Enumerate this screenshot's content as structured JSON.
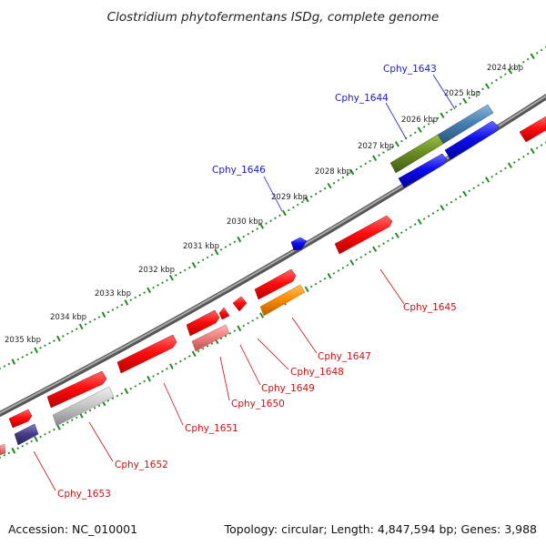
{
  "title": "Clostridium phytofermentans ISDg, complete genome",
  "scale_labels": [
    "2024 kbp",
    "2025 kbp",
    "2026 kbp",
    "2027 kbp",
    "2028 kbp",
    "2029 kbp",
    "2030 kbp",
    "2031 kbp",
    "2032 kbp",
    "2033 kbp",
    "2034 kbp",
    "2035 kbp"
  ],
  "top_genes": [
    "Cphy_1643",
    "Cphy_1644",
    "Cphy_1646"
  ],
  "bottom_genes": [
    "Cphy_1645",
    "Cphy_1647",
    "Cphy_1648",
    "Cphy_1649",
    "Cphy_1650",
    "Cphy_1651",
    "Cphy_1652",
    "Cphy_1653"
  ],
  "footer": {
    "accession": "Accession: NC_010001",
    "summary": "Topology: circular; Length: 4,847,594 bp; Genes: 3,988"
  },
  "colors": {
    "backbone": "#777777",
    "tick": "#228822",
    "red": "#ff1010",
    "blue": "#1010ee",
    "olive": "#6b8e23",
    "steelblue": "#4682b4",
    "orange": "#ff8c00",
    "salmon": "#f08080",
    "silver": "#c8c8c8",
    "navy": "#483d8b"
  }
}
